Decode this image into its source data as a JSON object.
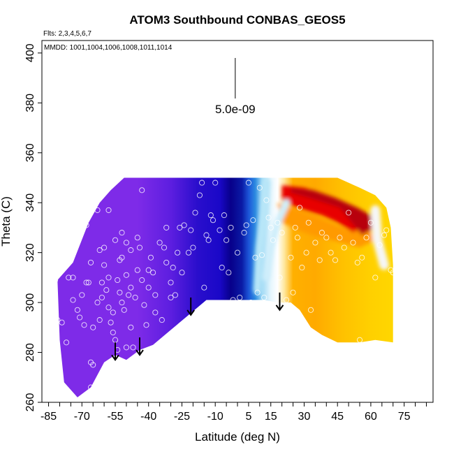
{
  "chart_data": {
    "type": "heatmap",
    "title": "ATOM3 Southbound CONBAS_GEOS5",
    "flights_label": "Flts: 2,3,4,5,6,7",
    "dates_label": "MMDD: 1001,1004,1006,1008,1011,1014",
    "xlabel": "Latitude (deg N)",
    "ylabel": "Theta (C)",
    "xlim": [
      -88,
      88
    ],
    "ylim": [
      260,
      405
    ],
    "x_major_ticks": [
      -85,
      -70,
      -55,
      -40,
      -25,
      -10,
      5,
      15,
      30,
      45,
      60,
      75
    ],
    "x_minor_step": 5,
    "y_ticks": [
      260,
      280,
      300,
      320,
      340,
      360,
      380,
      400
    ],
    "scale_bar": {
      "label": "5.0e-09",
      "x": -1,
      "y_top": 398,
      "y_bottom": 384
    },
    "grid": false,
    "colors": {
      "purple": "#7e2be8",
      "blue": "#1a08c8",
      "navy": "#08008a",
      "light_blue": "#9ed9f5",
      "white": "#ffffff",
      "yellow": "#ffc800",
      "orange": "#ff9a00",
      "red": "#e80000",
      "dark_red": "#b80010"
    },
    "field_outline": {
      "top_theta": 350,
      "bottom": [
        [
          -78,
          268
        ],
        [
          -72,
          262
        ],
        [
          -66,
          266
        ],
        [
          -60,
          276
        ],
        [
          -55,
          279
        ],
        [
          -50,
          277
        ],
        [
          -44,
          281
        ],
        [
          -38,
          283
        ],
        [
          -30,
          289
        ],
        [
          -22,
          295
        ],
        [
          -14,
          301
        ],
        [
          -5,
          301
        ],
        [
          5,
          301
        ],
        [
          12,
          301
        ],
        [
          18,
          300
        ],
        [
          24,
          300
        ],
        [
          28,
          297
        ],
        [
          33,
          290
        ],
        [
          38,
          287
        ],
        [
          45,
          284
        ],
        [
          55,
          284
        ],
        [
          62,
          285
        ],
        [
          70,
          284
        ]
      ],
      "left": [
        [
          -78,
          268
        ],
        [
          -80,
          285
        ],
        [
          -81,
          309
        ],
        [
          -74,
          316
        ],
        [
          -67,
          332
        ],
        [
          -62,
          340
        ],
        [
          -57,
          345
        ],
        [
          -51,
          350
        ]
      ],
      "right": [
        [
          70,
          284
        ],
        [
          70,
          300
        ],
        [
          70,
          315
        ],
        [
          69,
          330
        ],
        [
          67,
          338
        ],
        [
          62,
          343
        ],
        [
          55,
          346
        ],
        [
          50,
          348
        ],
        [
          45,
          350
        ]
      ]
    },
    "color_stops": [
      {
        "lat": -85,
        "color": "#7e2be8"
      },
      {
        "lat": -45,
        "color": "#7e2be8"
      },
      {
        "lat": -30,
        "color": "#5d1ee0"
      },
      {
        "lat": -18,
        "color": "#2a0ecc"
      },
      {
        "lat": -8,
        "color": "#1a08c8"
      },
      {
        "lat": -3,
        "color": "#08008a"
      },
      {
        "lat": 2,
        "color": "#0a1aa5"
      },
      {
        "lat": 5,
        "color": "#1c55d8"
      },
      {
        "lat": 8,
        "color": "#2c8ae0"
      },
      {
        "lat": 11,
        "color": "#9ed9f5"
      },
      {
        "lat": 15,
        "color": "#e6f6fd"
      },
      {
        "lat": 18,
        "color": "#ffffff"
      },
      {
        "lat": 21,
        "color": "#ffe8a0"
      },
      {
        "lat": 25,
        "color": "#ffb000"
      },
      {
        "lat": 35,
        "color": "#ffaa00"
      },
      {
        "lat": 48,
        "color": "#ffc200"
      },
      {
        "lat": 60,
        "color": "#ffd000"
      },
      {
        "lat": 72,
        "color": "#ffd800"
      }
    ],
    "red_cap": [
      [
        20,
        347
      ],
      [
        30,
        346
      ],
      [
        40,
        343
      ],
      [
        50,
        339
      ],
      [
        56,
        336
      ],
      [
        58,
        331
      ],
      [
        52,
        328
      ],
      [
        45,
        332
      ],
      [
        38,
        335
      ],
      [
        30,
        337
      ],
      [
        24,
        339
      ],
      [
        20,
        341
      ]
    ],
    "orange_band": [
      [
        18,
        340
      ],
      [
        30,
        336
      ],
      [
        42,
        332
      ],
      [
        52,
        328
      ],
      [
        58,
        331
      ],
      [
        62,
        325
      ],
      [
        55,
        322
      ],
      [
        42,
        325
      ],
      [
        30,
        328
      ],
      [
        20,
        332
      ]
    ],
    "light_streaks": [
      {
        "points": [
          [
            13,
            348
          ],
          [
            12,
            336
          ],
          [
            10,
            322
          ],
          [
            9,
            305
          ]
        ],
        "color": "#b8e6f8",
        "width": 12
      },
      {
        "points": [
          [
            22,
            340
          ],
          [
            18,
            332
          ],
          [
            15,
            322
          ],
          [
            13,
            310
          ]
        ],
        "color": "#cfeefb",
        "width": 10
      },
      {
        "points": [
          [
            62,
            337
          ],
          [
            63,
            325
          ],
          [
            66,
            315
          ]
        ],
        "color": "#f6f6f6",
        "width": 14
      }
    ],
    "arrows": [
      {
        "lat": -55,
        "theta_top": 284,
        "theta_bottom": 277
      },
      {
        "lat": -44,
        "theta_top": 286,
        "theta_bottom": 279
      },
      {
        "lat": -21,
        "theta_top": 302,
        "theta_bottom": 295
      },
      {
        "lat": 19,
        "theta_top": 304,
        "theta_bottom": 297
      }
    ],
    "observations": [
      [
        -82,
        309
      ],
      [
        -81,
        293
      ],
      [
        -79,
        292
      ],
      [
        -77,
        284
      ],
      [
        -74,
        310
      ],
      [
        -71,
        294
      ],
      [
        -69,
        291
      ],
      [
        -68,
        308
      ],
      [
        -66,
        266
      ],
      [
        -66,
        276
      ],
      [
        -65,
        275
      ],
      [
        -65,
        290
      ],
      [
        -63,
        300
      ],
      [
        -62,
        293
      ],
      [
        -61,
        302
      ],
      [
        -60,
        315
      ],
      [
        -59,
        305
      ],
      [
        -58,
        298
      ],
      [
        -57,
        292
      ],
      [
        -56,
        288
      ],
      [
        -55,
        285
      ],
      [
        -54,
        281
      ],
      [
        -53,
        304
      ],
      [
        -52,
        300
      ],
      [
        -51,
        297
      ],
      [
        -50,
        311
      ],
      [
        -49,
        303
      ],
      [
        -48,
        290
      ],
      [
        -47,
        282
      ],
      [
        -46,
        302
      ],
      [
        -45,
        313
      ],
      [
        -44,
        322
      ],
      [
        -43,
        309
      ],
      [
        -42,
        299
      ],
      [
        -41,
        291
      ],
      [
        -40,
        306
      ],
      [
        -39,
        318
      ],
      [
        -38,
        312
      ],
      [
        -37,
        303
      ],
      [
        -35,
        324
      ],
      [
        -33,
        322
      ],
      [
        -32,
        330
      ],
      [
        -30,
        308
      ],
      [
        -29,
        314
      ],
      [
        -27,
        320
      ],
      [
        -26,
        330
      ],
      [
        -25,
        312
      ],
      [
        -24,
        331
      ],
      [
        -22,
        320
      ],
      [
        -21,
        329
      ],
      [
        -19,
        336
      ],
      [
        -17,
        343
      ],
      [
        -16,
        348
      ],
      [
        -14,
        327
      ],
      [
        -12,
        335
      ],
      [
        -11,
        333
      ],
      [
        -10,
        348
      ],
      [
        -8,
        329
      ],
      [
        -6,
        335
      ],
      [
        -5,
        325
      ],
      [
        -4,
        312
      ],
      [
        -3,
        330
      ],
      [
        -2,
        301
      ],
      [
        0,
        320
      ],
      [
        1,
        302
      ],
      [
        3,
        328
      ],
      [
        4,
        331
      ],
      [
        5,
        348
      ],
      [
        6,
        300
      ],
      [
        7,
        333
      ],
      [
        8,
        318
      ],
      [
        9,
        304
      ],
      [
        10,
        346
      ],
      [
        11,
        319
      ],
      [
        12,
        302
      ],
      [
        13,
        341
      ],
      [
        14,
        334
      ],
      [
        15,
        330
      ],
      [
        16,
        325
      ],
      [
        18,
        332
      ],
      [
        19,
        310
      ],
      [
        20,
        328
      ],
      [
        22,
        301
      ],
      [
        24,
        318
      ],
      [
        25,
        304
      ],
      [
        26,
        330
      ],
      [
        27,
        326
      ],
      [
        28,
        338
      ],
      [
        29,
        314
      ],
      [
        31,
        320
      ],
      [
        32,
        332
      ],
      [
        33,
        297
      ],
      [
        35,
        324
      ],
      [
        37,
        317
      ],
      [
        38,
        328
      ],
      [
        40,
        326
      ],
      [
        42,
        320
      ],
      [
        44,
        317
      ],
      [
        46,
        326
      ],
      [
        48,
        322
      ],
      [
        50,
        336
      ],
      [
        52,
        324
      ],
      [
        54,
        316
      ],
      [
        55,
        285
      ],
      [
        56,
        318
      ],
      [
        58,
        326
      ],
      [
        60,
        332
      ],
      [
        62,
        310
      ],
      [
        64,
        323
      ],
      [
        66,
        327
      ],
      [
        67,
        329
      ],
      [
        69,
        313
      ],
      [
        70,
        312
      ],
      [
        -84,
        293
      ],
      [
        -68,
        331
      ],
      [
        -63,
        337
      ],
      [
        -58,
        337
      ],
      [
        -55,
        325
      ],
      [
        -52,
        318
      ],
      [
        -48,
        321
      ],
      [
        -43,
        345
      ],
      [
        -52,
        328
      ],
      [
        -40,
        313
      ],
      [
        -37,
        296
      ],
      [
        -34,
        293
      ],
      [
        -32,
        316
      ],
      [
        -28,
        303
      ],
      [
        -30,
        302
      ],
      [
        -20,
        322
      ],
      [
        -15,
        306
      ],
      [
        -13,
        325
      ],
      [
        -7,
        314
      ],
      [
        -58,
        310
      ],
      [
        -62,
        321
      ],
      [
        -66,
        316
      ],
      [
        -67,
        308
      ],
      [
        -61,
        308
      ],
      [
        -60,
        322
      ],
      [
        -53,
        317
      ],
      [
        -50,
        324
      ],
      [
        -45,
        326
      ],
      [
        -70,
        303
      ],
      [
        -72,
        297
      ],
      [
        -74,
        301
      ],
      [
        -76,
        310
      ],
      [
        -54,
        309
      ],
      [
        -48,
        306
      ],
      [
        -56,
        296
      ],
      [
        -50,
        282
      ]
    ]
  }
}
